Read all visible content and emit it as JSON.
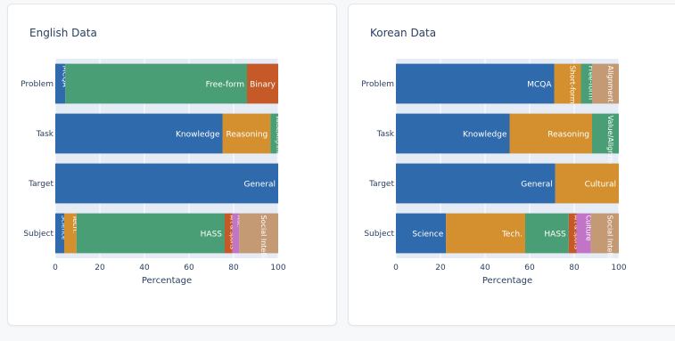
{
  "colors": {
    "blue": "#2e6aac",
    "orange": "#d4902f",
    "green": "#4a9e75",
    "red": "#c55a28",
    "pink": "#c274c6",
    "tan": "#c49a75",
    "plot_bg": "#e5ecf6",
    "grid": "#ffffff",
    "axis_text": "#2a3f5f"
  },
  "chart_data": [
    {
      "type": "bar",
      "orientation": "horizontal",
      "stacked": true,
      "title": "English Data",
      "xlabel": "Percentage",
      "ylabel": "",
      "xlim": [
        0,
        100
      ],
      "x_ticks": [
        0,
        20,
        40,
        60,
        80,
        100
      ],
      "categories": [
        "Problem",
        "Task",
        "Target",
        "Subject"
      ],
      "rows": [
        {
          "category": "Problem",
          "segments": [
            {
              "label": "MCQA",
              "value": 4.5,
              "color": "blue",
              "vertical": true
            },
            {
              "label": "Free-form",
              "value": 81.5,
              "color": "green"
            },
            {
              "label": "Binary",
              "value": 14,
              "color": "red"
            }
          ]
        },
        {
          "category": "Task",
          "segments": [
            {
              "label": "Knowledge",
              "value": 75,
              "color": "blue"
            },
            {
              "label": "Reasoning",
              "value": 21.5,
              "color": "orange"
            },
            {
              "label": "Value/Alignment",
              "value": 3.5,
              "color": "green",
              "vertical": true
            }
          ]
        },
        {
          "category": "Target",
          "segments": [
            {
              "label": "General",
              "value": 100,
              "color": "blue"
            }
          ]
        },
        {
          "category": "Subject",
          "segments": [
            {
              "label": "Science",
              "value": 4,
              "color": "blue",
              "vertical": true
            },
            {
              "label": "Tech.",
              "value": 5.5,
              "color": "orange",
              "vertical": true
            },
            {
              "label": "HASS",
              "value": 66.5,
              "color": "green"
            },
            {
              "label": "Art & Sports",
              "value": 3.5,
              "color": "red",
              "vertical": true
            },
            {
              "label": "Misc.",
              "value": 3,
              "color": "pink",
              "vertical": true
            },
            {
              "label": "Social Intelligence",
              "value": 17.5,
              "color": "tan",
              "vertical": true
            }
          ]
        }
      ]
    },
    {
      "type": "bar",
      "orientation": "horizontal",
      "stacked": true,
      "title": "Korean Data",
      "xlabel": "Percentage",
      "ylabel": "",
      "xlim": [
        0,
        100
      ],
      "x_ticks": [
        0,
        20,
        40,
        60,
        80,
        100
      ],
      "categories": [
        "Problem",
        "Task",
        "Target",
        "Subject"
      ],
      "rows": [
        {
          "category": "Problem",
          "segments": [
            {
              "label": "MCQA",
              "value": 71,
              "color": "blue"
            },
            {
              "label": "Short-form",
              "value": 12,
              "color": "orange",
              "vertical": true
            },
            {
              "label": "Free-form",
              "value": 5,
              "color": "green",
              "vertical": true
            },
            {
              "label": "Alignment",
              "value": 12,
              "color": "tan",
              "vertical": true
            }
          ]
        },
        {
          "category": "Task",
          "segments": [
            {
              "label": "Knowledge",
              "value": 51,
              "color": "blue"
            },
            {
              "label": "Reasoning",
              "value": 37,
              "color": "orange"
            },
            {
              "label": "Value/Alignment",
              "value": 12,
              "color": "green",
              "vertical": true
            }
          ]
        },
        {
          "category": "Target",
          "segments": [
            {
              "label": "General",
              "value": 71.5,
              "color": "blue"
            },
            {
              "label": "Cultural",
              "value": 28.5,
              "color": "orange"
            }
          ]
        },
        {
          "category": "Subject",
          "segments": [
            {
              "label": "Science",
              "value": 22.5,
              "color": "blue"
            },
            {
              "label": "Tech.",
              "value": 35.5,
              "color": "orange"
            },
            {
              "label": "HASS",
              "value": 19.5,
              "color": "green"
            },
            {
              "label": "Art & Sports",
              "value": 3.5,
              "color": "red",
              "vertical": true
            },
            {
              "label": "Culture",
              "value": 6.5,
              "color": "pink",
              "vertical": true
            },
            {
              "label": "Social Intelligence",
              "value": 12.5,
              "color": "tan",
              "vertical": true
            }
          ]
        }
      ]
    }
  ]
}
